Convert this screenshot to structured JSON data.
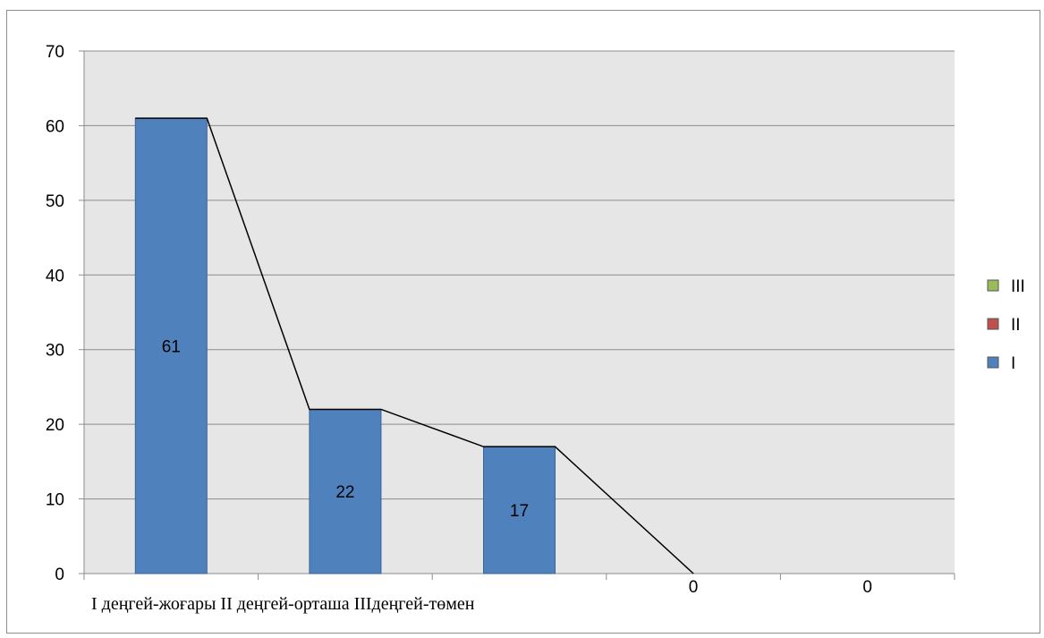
{
  "chart_data": {
    "type": "bar",
    "categories": [
      "",
      "",
      "",
      "",
      ""
    ],
    "category_caption": "І деңгей-жоғары ІІ деңгей-орташа ІІІдеңгей-төмен",
    "series": [
      {
        "name": "I",
        "values": [
          61,
          22,
          17,
          0,
          0
        ],
        "color": "#4f81bd"
      },
      {
        "name": "II",
        "values": [
          null,
          null,
          null,
          null,
          null
        ],
        "color": "#c0504d"
      },
      {
        "name": "III",
        "values": [
          null,
          null,
          null,
          null,
          null
        ],
        "color": "#9bbb59"
      }
    ],
    "data_labels": [
      "61",
      "22",
      "17",
      "0",
      "0"
    ],
    "trend_line": [
      61,
      22,
      17,
      0
    ],
    "ylim": [
      0,
      70
    ],
    "yticks": [
      0,
      10,
      20,
      30,
      40,
      50,
      60,
      70
    ],
    "grid": true,
    "legend_position": "right",
    "legend_order": [
      "III",
      "II",
      "I"
    ],
    "plot_background": "#e6e6e6",
    "title": "",
    "xlabel": "",
    "ylabel": ""
  }
}
